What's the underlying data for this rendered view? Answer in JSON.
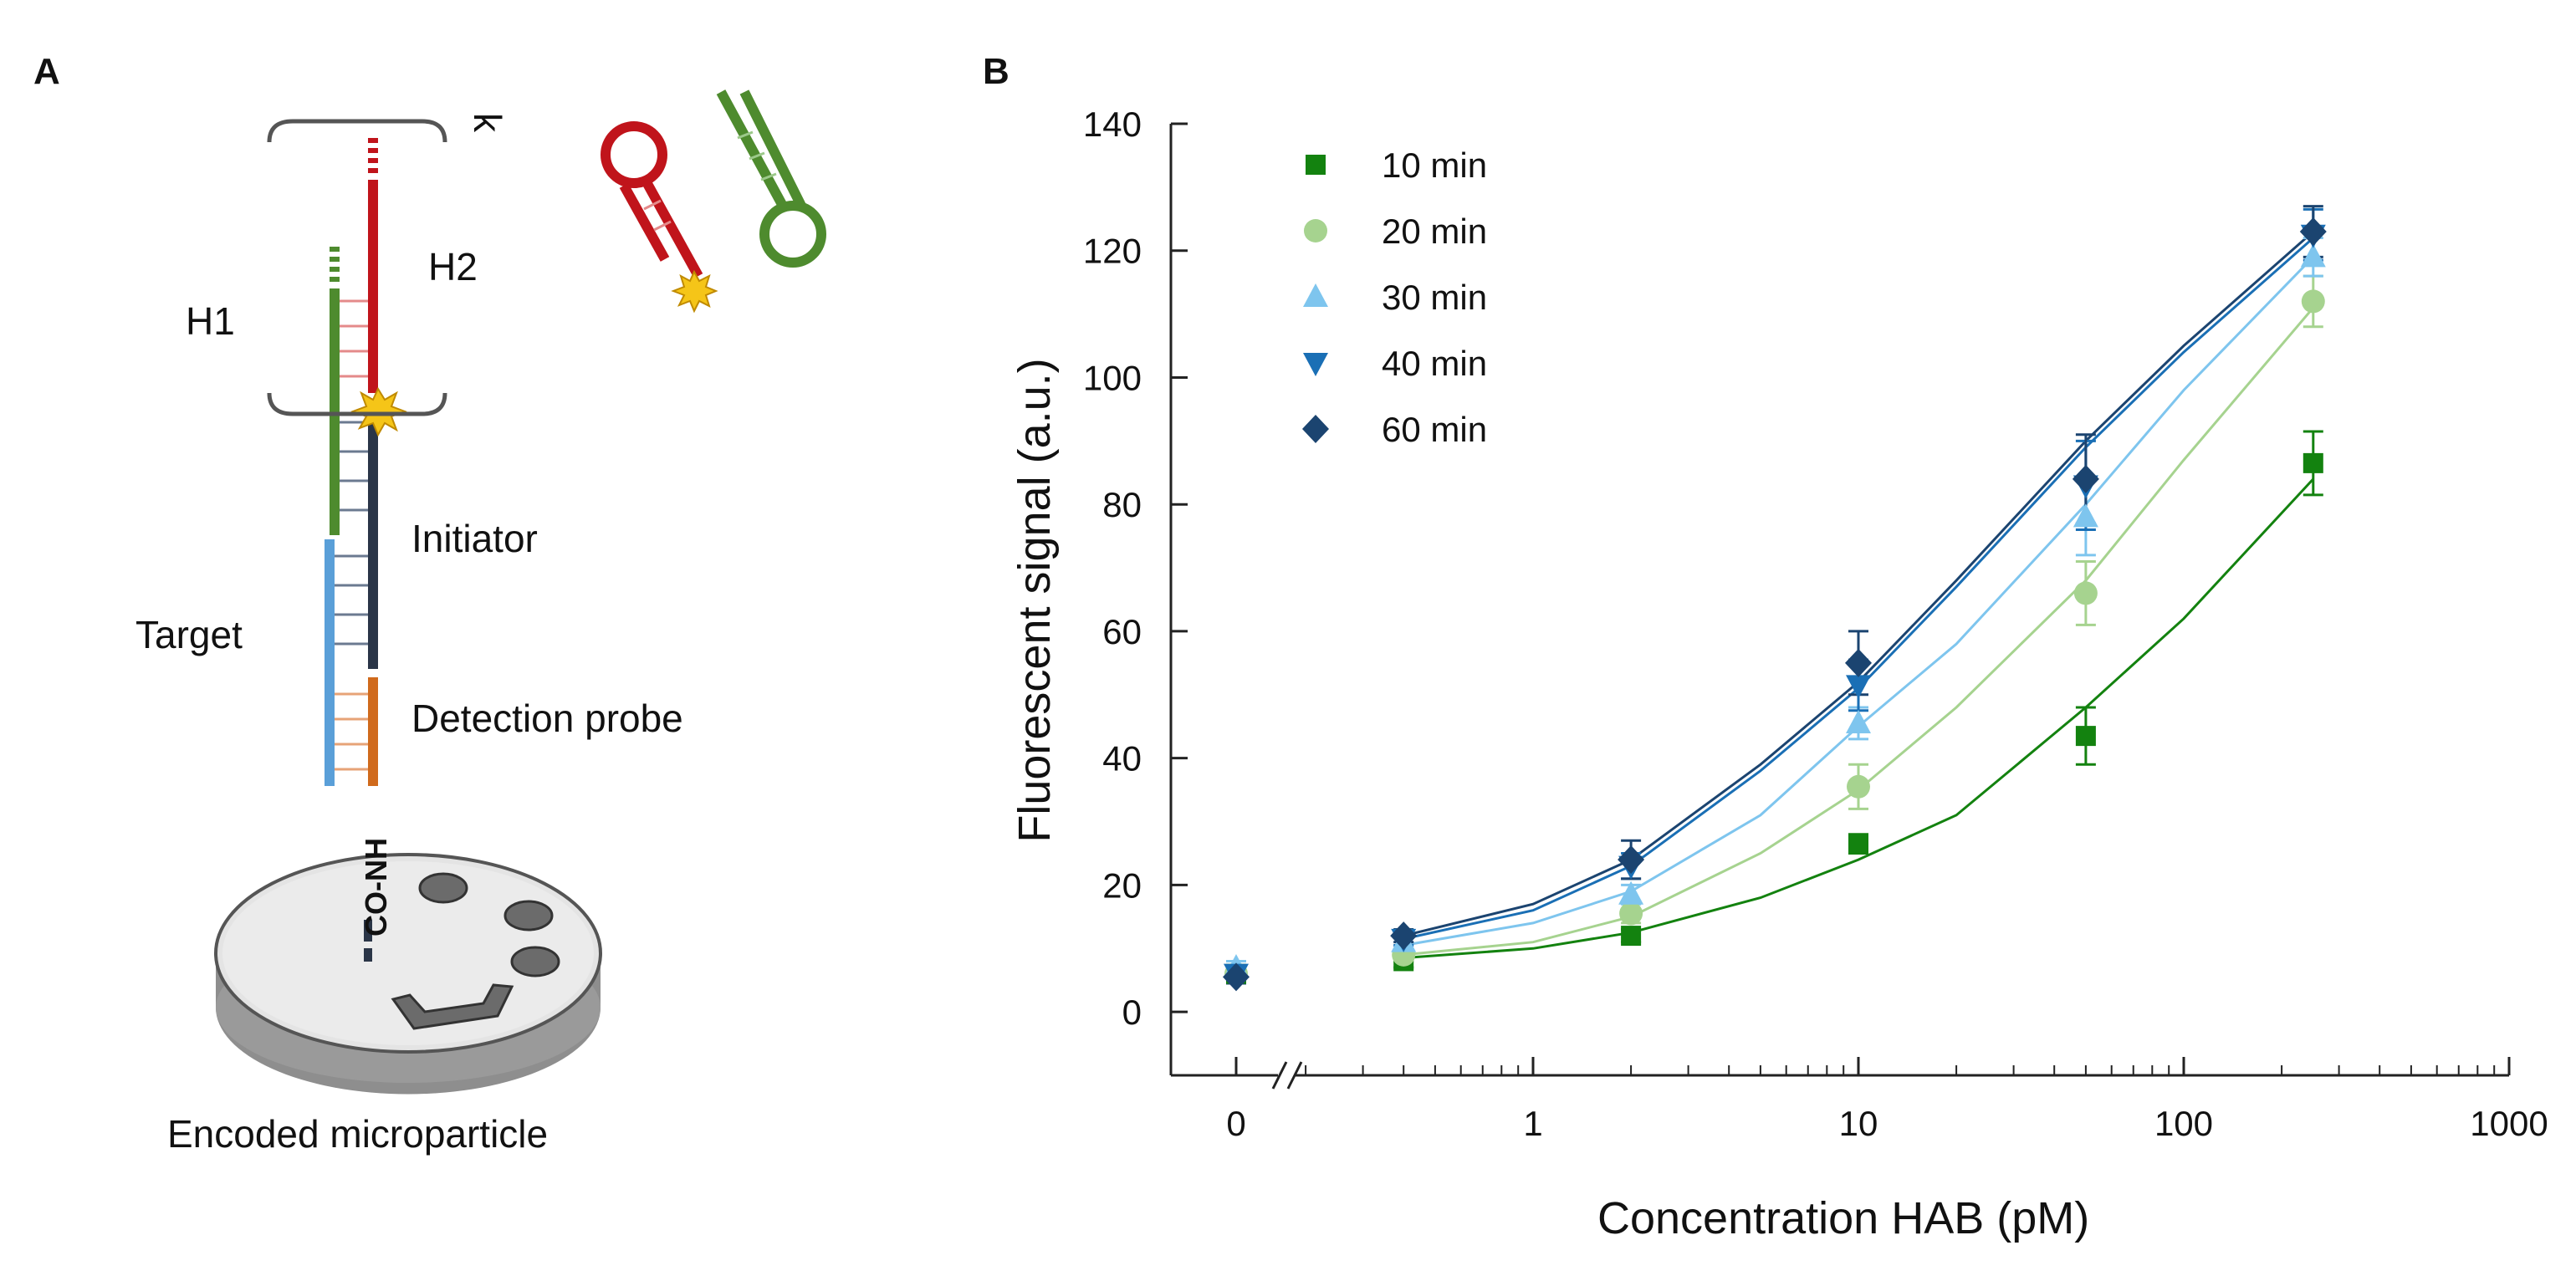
{
  "panel_a": {
    "label": "A",
    "labels": {
      "k": "k",
      "h1": "H1",
      "h2": "H2",
      "initiator": "Initiator",
      "target": "Target",
      "detection_probe": "Detection probe",
      "conh": "CO-NH",
      "particle": "Encoded microparticle"
    },
    "colors": {
      "h1": "#4e8b2e",
      "h2": "#c0141b",
      "initiator": "#2a3547",
      "target": "#5a9fd8",
      "detection_probe": "#d06a1c",
      "fluorophore": "#f5c518"
    }
  },
  "panel_b": {
    "label": "B"
  },
  "chart_data": {
    "type": "scatter",
    "title": "",
    "xlabel": "Concentration HAB (pM)",
    "ylabel": "Fluorescent signal (a.u.)",
    "xscale": "log with axis break",
    "xlim": [
      0.1,
      1000
    ],
    "ylim": [
      -10,
      140
    ],
    "x_ticks": [
      "0",
      "1",
      "10",
      "100",
      "1000"
    ],
    "y_ticks": [
      "0",
      "20",
      "40",
      "60",
      "80",
      "100",
      "120",
      "140"
    ],
    "x": [
      0,
      0.4,
      2,
      10,
      50,
      250
    ],
    "series": [
      {
        "name": "10 min",
        "marker": "square",
        "color": "#13820f",
        "values": [
          6,
          8,
          12,
          26.5,
          43.5,
          86.5
        ],
        "errors": [
          1,
          1,
          1,
          1.5,
          4.5,
          5
        ],
        "fit": {
          "x": [
            0.4,
            1,
            2,
            5,
            10,
            20,
            50,
            100,
            250
          ],
          "y": [
            8.5,
            10,
            12.5,
            18,
            24,
            31,
            48,
            62,
            84
          ]
        }
      },
      {
        "name": "20 min",
        "marker": "circle",
        "color": "#a6d38f",
        "values": [
          6,
          9,
          15.5,
          35.5,
          66,
          112
        ],
        "errors": [
          1,
          1,
          1.5,
          3.5,
          5,
          4
        ],
        "fit": {
          "x": [
            0.4,
            1,
            2,
            5,
            10,
            20,
            50,
            100,
            250
          ],
          "y": [
            9,
            11,
            15,
            25,
            35,
            48,
            68,
            87,
            111
          ]
        }
      },
      {
        "name": "30 min",
        "marker": "triangle-up",
        "color": "#7ec5ee",
        "values": [
          7,
          11,
          18.5,
          45.5,
          78,
          119
        ],
        "errors": [
          1,
          1,
          1.5,
          2.5,
          6,
          3
        ],
        "fit": {
          "x": [
            0.4,
            1,
            2,
            5,
            10,
            20,
            50,
            100,
            250
          ],
          "y": [
            10.5,
            14,
            19,
            31,
            45,
            58,
            80,
            98,
            119
          ]
        }
      },
      {
        "name": "40 min",
        "marker": "triangle-down",
        "color": "#1a6fb5",
        "values": [
          6,
          11.5,
          23,
          51.5,
          83,
          122.5
        ],
        "errors": [
          1,
          1,
          2,
          4,
          7,
          4
        ],
        "fit": {
          "x": [
            0.4,
            1,
            2,
            5,
            10,
            20,
            50,
            100,
            250
          ],
          "y": [
            11.5,
            16,
            23,
            38,
            51,
            67,
            89,
            104,
            122
          ]
        }
      },
      {
        "name": "60 min",
        "marker": "diamond",
        "color": "#1b4470",
        "values": [
          5.5,
          12,
          24,
          55,
          84,
          123
        ],
        "errors": [
          1,
          1,
          3,
          5,
          7,
          4
        ],
        "fit": {
          "x": [
            0.4,
            1,
            2,
            5,
            10,
            20,
            50,
            100,
            250
          ],
          "y": [
            12,
            17,
            24,
            39,
            52,
            68,
            90,
            105,
            123
          ]
        }
      }
    ]
  }
}
